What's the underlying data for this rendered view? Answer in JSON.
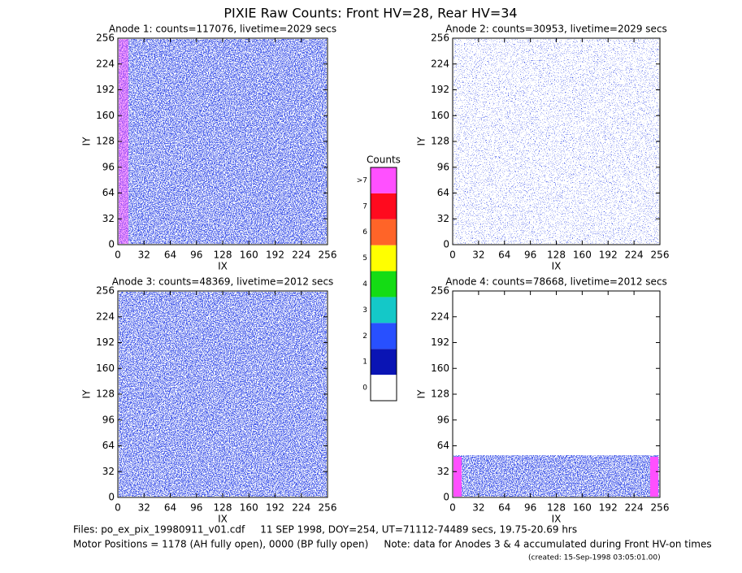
{
  "header": {
    "title": "PIXIE Raw Counts:  Front HV=28, Rear HV=34"
  },
  "chart_data": [
    {
      "type": "heatmap",
      "title": "Anode 1: counts=117076, livetime=2029 secs",
      "xlabel": "IX",
      "ylabel": "IY",
      "xlim": [
        0,
        256
      ],
      "ylim": [
        0,
        256
      ],
      "xticks": [
        0,
        32,
        64,
        96,
        128,
        160,
        192,
        224,
        256
      ],
      "yticks": [
        0,
        32,
        64,
        96,
        128,
        160,
        192,
        224,
        256
      ]
    },
    {
      "type": "heatmap",
      "title": "Anode 2: counts=30953, livetime=2029 secs",
      "xlabel": "IX",
      "ylabel": "IY",
      "xlim": [
        0,
        256
      ],
      "ylim": [
        0,
        256
      ],
      "xticks": [
        0,
        32,
        64,
        96,
        128,
        160,
        192,
        224,
        256
      ],
      "yticks": [
        0,
        32,
        64,
        96,
        128,
        160,
        192,
        224,
        256
      ]
    },
    {
      "type": "heatmap",
      "title": "Anode 3: counts=48369, livetime=2012 secs",
      "xlabel": "IX",
      "ylabel": "IY",
      "xlim": [
        0,
        256
      ],
      "ylim": [
        0,
        256
      ],
      "xticks": [
        0,
        32,
        64,
        96,
        128,
        160,
        192,
        224,
        256
      ],
      "yticks": [
        0,
        32,
        64,
        96,
        128,
        160,
        192,
        224,
        256
      ]
    },
    {
      "type": "heatmap",
      "title": "Anode 4: counts=78668, livetime=2012 secs",
      "xlabel": "IX",
      "ylabel": "IY",
      "xlim": [
        0,
        256
      ],
      "ylim": [
        0,
        256
      ],
      "xticks": [
        0,
        32,
        64,
        96,
        128,
        160,
        192,
        224,
        256
      ],
      "yticks": [
        0,
        32,
        64,
        96,
        128,
        160,
        192,
        224,
        256
      ]
    }
  ],
  "colorbar": {
    "title": "Counts",
    "labels": [
      0,
      1,
      2,
      3,
      4,
      5,
      6,
      7,
      ">7"
    ],
    "colors": [
      "#ffffff",
      "#0a14b4",
      "#2850ff",
      "#14c8c8",
      "#14dc14",
      "#ffff00",
      "#ff6428",
      "#ff0a1e",
      "#ff50ff"
    ]
  },
  "footer": {
    "files": "Files: po_ex_pix_19980911_v01.cdf     11 SEP 1998, DOY=254, UT=71112-74489 secs, 19.75-20.69 hrs",
    "motor": "Motor Positions = 1178 (AH fully open), 0000 (BP fully open)     Note: data for Anodes 3 & 4 accumulated during Front HV-on times",
    "created": "(created: 15-Sep-1998 03:05:01.00)"
  }
}
